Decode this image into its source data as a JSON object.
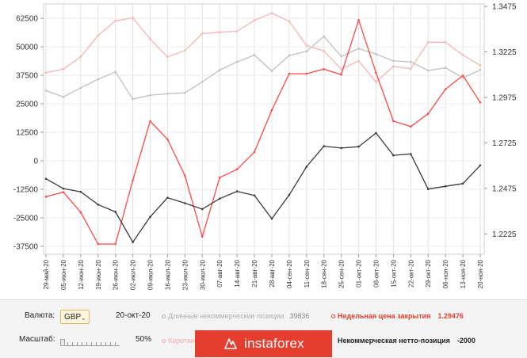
{
  "chart_data": {
    "type": "line",
    "x": [
      "29-май-20",
      "05-июн-20",
      "12-июн-20",
      "19-июн-20",
      "26-июн-20",
      "02-июл-20",
      "09-июл-20",
      "16-июл-20",
      "23-июл-20",
      "30-июл-20",
      "07-авг-20",
      "14-авг-20",
      "21-авг-20",
      "28-авг-20",
      "04-сен-20",
      "11-сен-20",
      "18-сен-20",
      "25-сен-20",
      "01-окт-20",
      "08-окт-20",
      "15-окт-20",
      "22-окт-20",
      "29-окт-20",
      "06-ноя-20",
      "13-ноя-20",
      "20-ноя-20"
    ],
    "left_ticks": [
      "62500",
      "50000",
      "37500",
      "25000",
      "12500",
      "0",
      "-12500",
      "-25000",
      "-37500"
    ],
    "right_ticks": [
      "1.3475",
      "1.3225",
      "1.2975",
      "1.2725",
      "1.2475",
      "1.2225"
    ],
    "left_ylim": [
      -41000,
      68800
    ],
    "right_ylim": [
      1.2114,
      1.3488
    ],
    "grid": true,
    "series": [
      {
        "name": "Длинные некоммерческие позиции",
        "axis": "left",
        "color": "#c0c0c0",
        "values": [
          30800,
          28000,
          32000,
          35800,
          39000,
          27000,
          28800,
          29400,
          29800,
          34600,
          39800,
          43400,
          46400,
          39400,
          46200,
          48000,
          54600,
          45800,
          49200,
          46800,
          43800,
          43400,
          39600,
          40800,
          36400,
          39836
        ]
      },
      {
        "name": "Короткие некоммерческие позиции",
        "axis": "left",
        "color": "#f7b4b6",
        "values": [
          38700,
          40200,
          45600,
          55000,
          61400,
          62700,
          53400,
          45600,
          48400,
          55800,
          56400,
          56800,
          61600,
          64800,
          61200,
          50600,
          48200,
          40200,
          43800,
          34600,
          41400,
          40400,
          52000,
          52000,
          46400,
          41836
        ]
      },
      {
        "name": "Недельная цена закрытия",
        "axis": "right",
        "color": "#ff4848",
        "values": [
          1.243,
          1.2455,
          1.2345,
          1.217,
          1.217,
          1.252,
          1.2845,
          1.2745,
          1.2545,
          1.221,
          1.2535,
          1.258,
          1.2675,
          1.2905,
          1.3105,
          1.3105,
          1.313,
          1.31,
          1.34,
          1.311,
          1.2845,
          1.2815,
          1.2885,
          1.302,
          1.3095,
          1.29476
        ]
      },
      {
        "name": "Некоммерческая нетто-позиция",
        "axis": "left",
        "color": "#3a3a3a",
        "values": [
          -7900,
          -12200,
          -13600,
          -19200,
          -22400,
          -35700,
          -24600,
          -16200,
          -18600,
          -21200,
          -16600,
          -13400,
          -15200,
          -25400,
          -15000,
          -2600,
          6400,
          5600,
          6200,
          12200,
          2400,
          3000,
          -12400,
          -11200,
          -10000,
          -2000
        ]
      }
    ]
  },
  "controls": {
    "currency_label": "Валюта:",
    "currency_value": "GBP",
    "date_value": "20-окт-20",
    "scale_label": "Масштаб:",
    "scale_value": "50%",
    "legend": {
      "long_label": "Длинные некоммерческие позиции",
      "long_value": "39836",
      "close_label": "Недельная цена закрытия",
      "close_value": "1.29476",
      "short_label": "Короткие некоммерческие позиции",
      "net_label": "Некоммерческая нетто-позиция",
      "net_value": "-2000"
    }
  },
  "brand": {
    "name": "instaforex"
  },
  "colors": {
    "long": "#c0c0c0",
    "short": "#f7b4b6",
    "close": "#ff4848",
    "net": "#3a3a3a",
    "banner": "#e53e2f"
  }
}
